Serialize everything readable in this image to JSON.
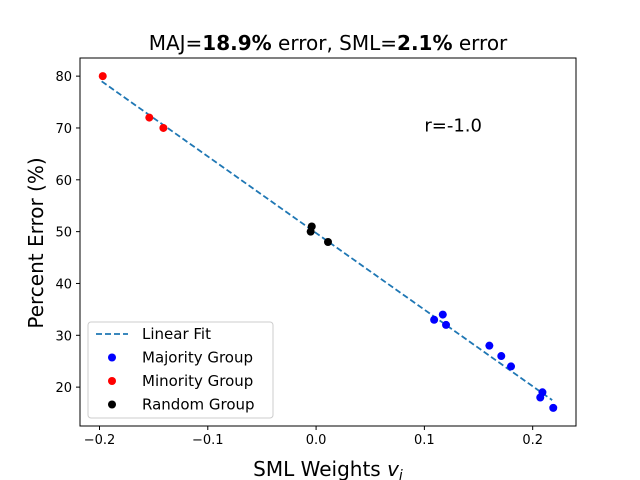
{
  "chart_data": {
    "type": "scatter",
    "title_parts": [
      {
        "text": "MAJ=",
        "bold": false
      },
      {
        "text": "18.9%",
        "bold": true
      },
      {
        "text": " error, SML=",
        "bold": false
      },
      {
        "text": "2.1%",
        "bold": true
      },
      {
        "text": " error",
        "bold": false
      }
    ],
    "xlabel": "SML Weights ",
    "xlabel_var": "v",
    "xlabel_sub": "i",
    "ylabel": "Percent Error (%)",
    "xlim": [
      -0.218,
      0.24
    ],
    "ylim": [
      12.5,
      83.5
    ],
    "x_ticks": [
      -0.2,
      -0.1,
      0.0,
      0.1,
      0.2
    ],
    "x_tick_labels": [
      "−0.2",
      "−0.1",
      "0.0",
      "0.1",
      "0.2"
    ],
    "y_ticks": [
      20,
      30,
      40,
      50,
      60,
      70,
      80
    ],
    "y_tick_labels": [
      "20",
      "30",
      "40",
      "50",
      "60",
      "70",
      "80"
    ],
    "grid": false,
    "annotation": {
      "text": "r=-1.0",
      "x": 0.1,
      "y": 70.5
    },
    "fit_line": {
      "name": "Linear Fit",
      "color": "#1f77b4",
      "style": "dashed",
      "x": [
        -0.198,
        0.218
      ],
      "y": [
        79,
        17.5
      ]
    },
    "series": [
      {
        "name": "Majority Group",
        "color": "#0000ff",
        "x": [
          0.109,
          0.117,
          0.12,
          0.16,
          0.171,
          0.18,
          0.207,
          0.209,
          0.219
        ],
        "y": [
          33,
          34,
          32,
          28,
          26,
          24,
          18,
          19,
          16
        ]
      },
      {
        "name": "Minority Group",
        "color": "#ff0000",
        "x": [
          -0.197,
          -0.154,
          -0.141
        ],
        "y": [
          80,
          72,
          70
        ]
      },
      {
        "name": "Random Group",
        "color": "#000000",
        "x": [
          -0.005,
          -0.004,
          0.011
        ],
        "y": [
          50,
          51,
          48
        ]
      }
    ],
    "legend_position": "lower-left"
  }
}
